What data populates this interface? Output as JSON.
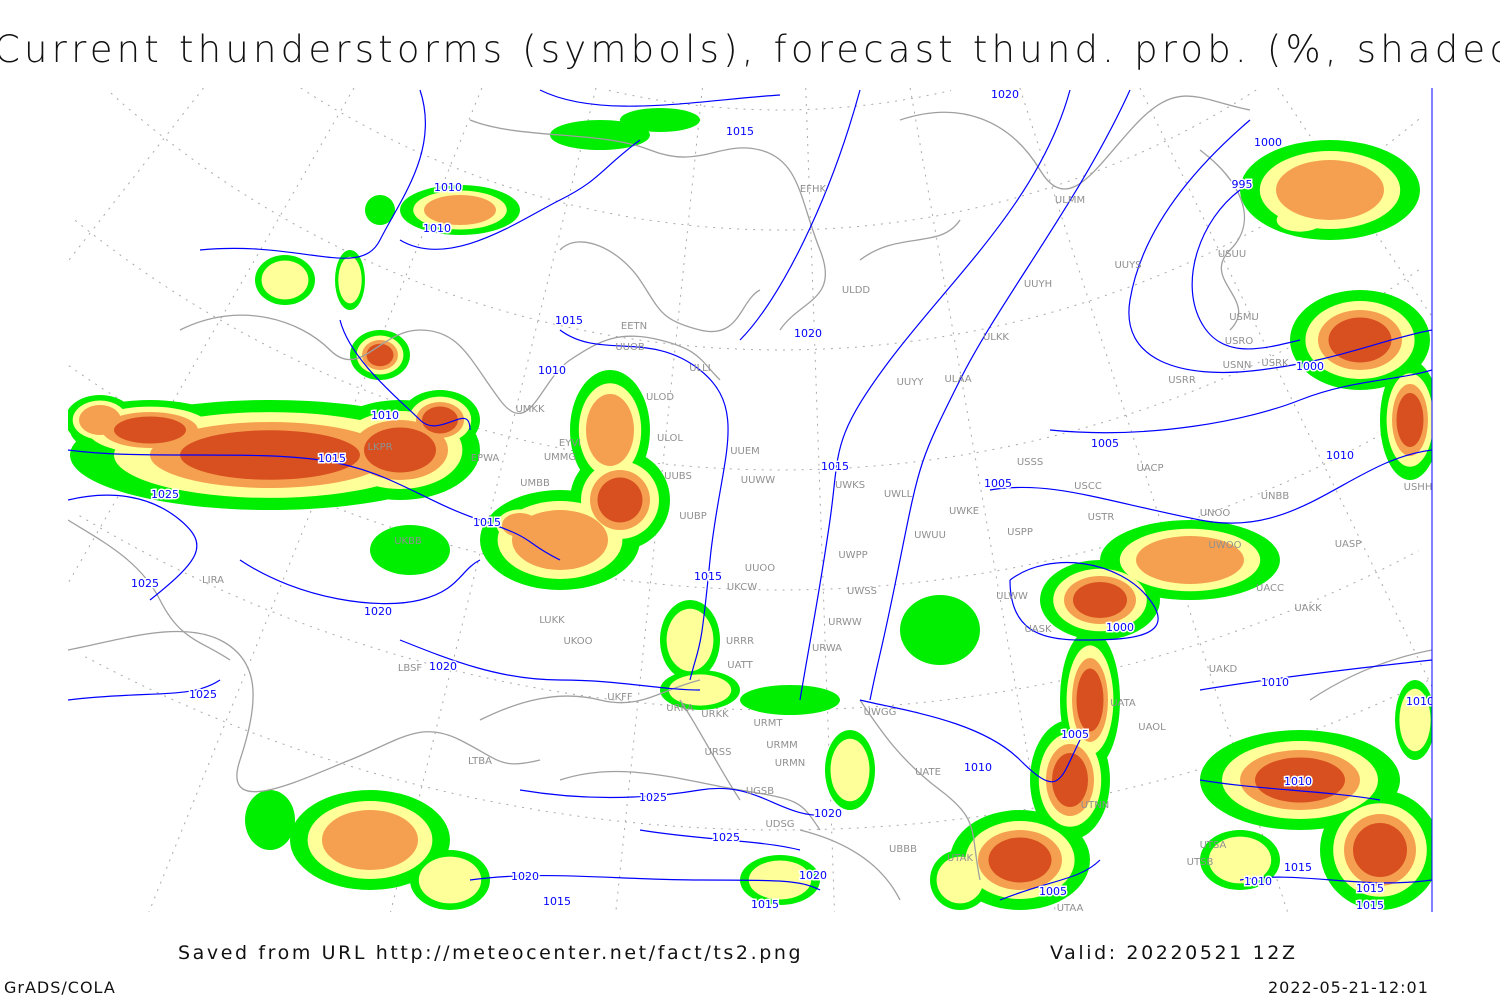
{
  "title": "Current thunderstorms (symbols), forecast thund. prob. (%, shaded)",
  "footer": {
    "source": "Saved from URL http://meteocenter.net/fact/ts2.png",
    "valid": "Valid: 20220521 12Z",
    "software": "GrADS/COLA",
    "timestamp": "2022-05-21-12:01"
  },
  "colors": {
    "prob_low": "#00ee00",
    "prob_mid": "#ffff99",
    "prob_high": "#f5a050",
    "prob_max": "#d8501f",
    "isobars": "#0000ff",
    "coastlines": "#a0a0a0",
    "stations": "#909090"
  },
  "isobar_labels": [
    "1015",
    "1010",
    "1010",
    "1015",
    "1020",
    "1010",
    "1010",
    "1015",
    "1025",
    "1015",
    "1025",
    "1020",
    "1020",
    "1025",
    "1015",
    "1015",
    "1005",
    "1010",
    "1005",
    "1000",
    "1000",
    "995",
    "1000",
    "1010",
    "1010",
    "1005",
    "1025",
    "1020",
    "1025",
    "1020",
    "1015",
    "1020",
    "1015",
    "1005",
    "1010",
    "1015",
    "1010",
    "1015",
    "1015",
    "1020",
    "1010"
  ],
  "stations": [
    "LKPR",
    "EPWA",
    "UMKK",
    "EYVI",
    "UMMG",
    "UMBB",
    "UKBB",
    "LIRA",
    "LBSF",
    "LUKK",
    "UKOO",
    "UKFF",
    "URKA",
    "URKK",
    "URMT",
    "URMM",
    "URSS",
    "URMN",
    "LTBA",
    "UGSB",
    "UDSG",
    "UBBB",
    "UATE",
    "UTAK",
    "UTAA",
    "UTSA",
    "UTSB",
    "UTNN",
    "UATA",
    "UAOL",
    "UACC",
    "UASP",
    "UAKK",
    "UAKD",
    "UWKE",
    "ULLI",
    "ULOL",
    "ULOD",
    "UUEM",
    "UUWW",
    "UUBP",
    "UUBS",
    "UUOO",
    "UWPP",
    "UWSS",
    "URWW",
    "URWA",
    "UWGG",
    "UWKS",
    "UWLL",
    "UWUU",
    "USPP",
    "USSS",
    "USCC",
    "USTR",
    "UACP",
    "UNOO",
    "UNBB",
    "USHH",
    "USRR",
    "USNN",
    "USRK",
    "USRO",
    "USMU",
    "USUU",
    "UUYS",
    "UUYH",
    "ULKK",
    "UUYY",
    "ULAA",
    "ULDD",
    "ULMM",
    "EFHK",
    "EETN",
    "UUOB",
    "UKCW",
    "URRR",
    "UATT",
    "UASK",
    "UWOO",
    "ULWW"
  ]
}
